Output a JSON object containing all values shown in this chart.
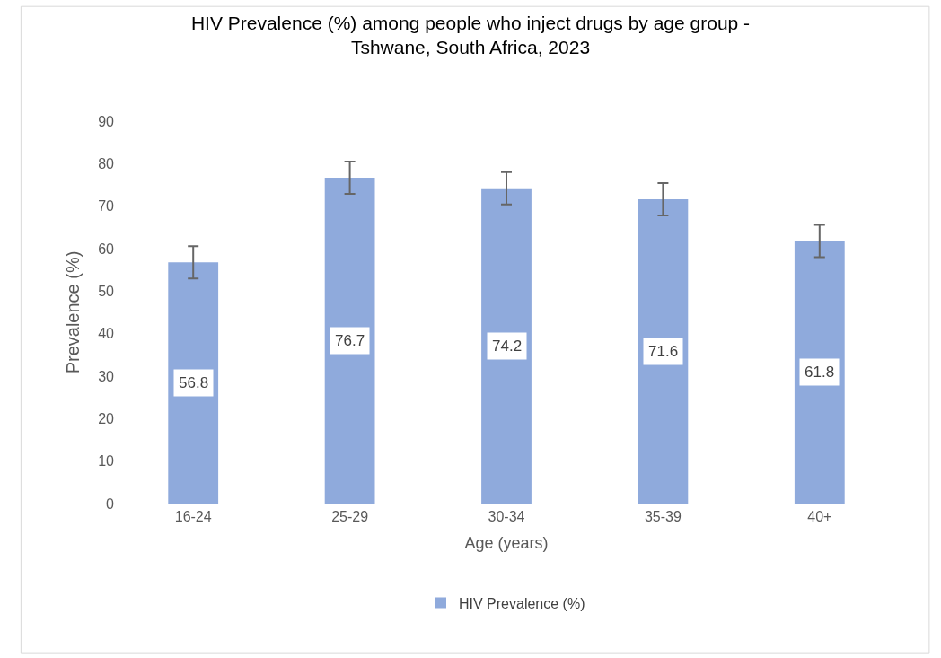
{
  "chart_data": {
    "type": "bar",
    "title": "HIV Prevalence (%) among people who inject drugs by age group -\nTshwane, South Africa, 2023",
    "xlabel": "Age (years)",
    "ylabel": "Prevalence (%)",
    "categories": [
      "16-24",
      "25-29",
      "30-34",
      "35-39",
      "40+"
    ],
    "series": [
      {
        "name": "HIV Prevalence (%)",
        "color": "#8faadc",
        "values": [
          56.8,
          76.7,
          74.2,
          71.6,
          61.8
        ],
        "errors": [
          3.8,
          3.8,
          3.8,
          3.8,
          3.8
        ]
      }
    ],
    "ylim": [
      0,
      90
    ],
    "yticks": [
      0,
      10,
      20,
      30,
      40,
      50,
      60,
      70,
      80,
      90
    ],
    "legend": "bottom",
    "data_labels": true
  }
}
